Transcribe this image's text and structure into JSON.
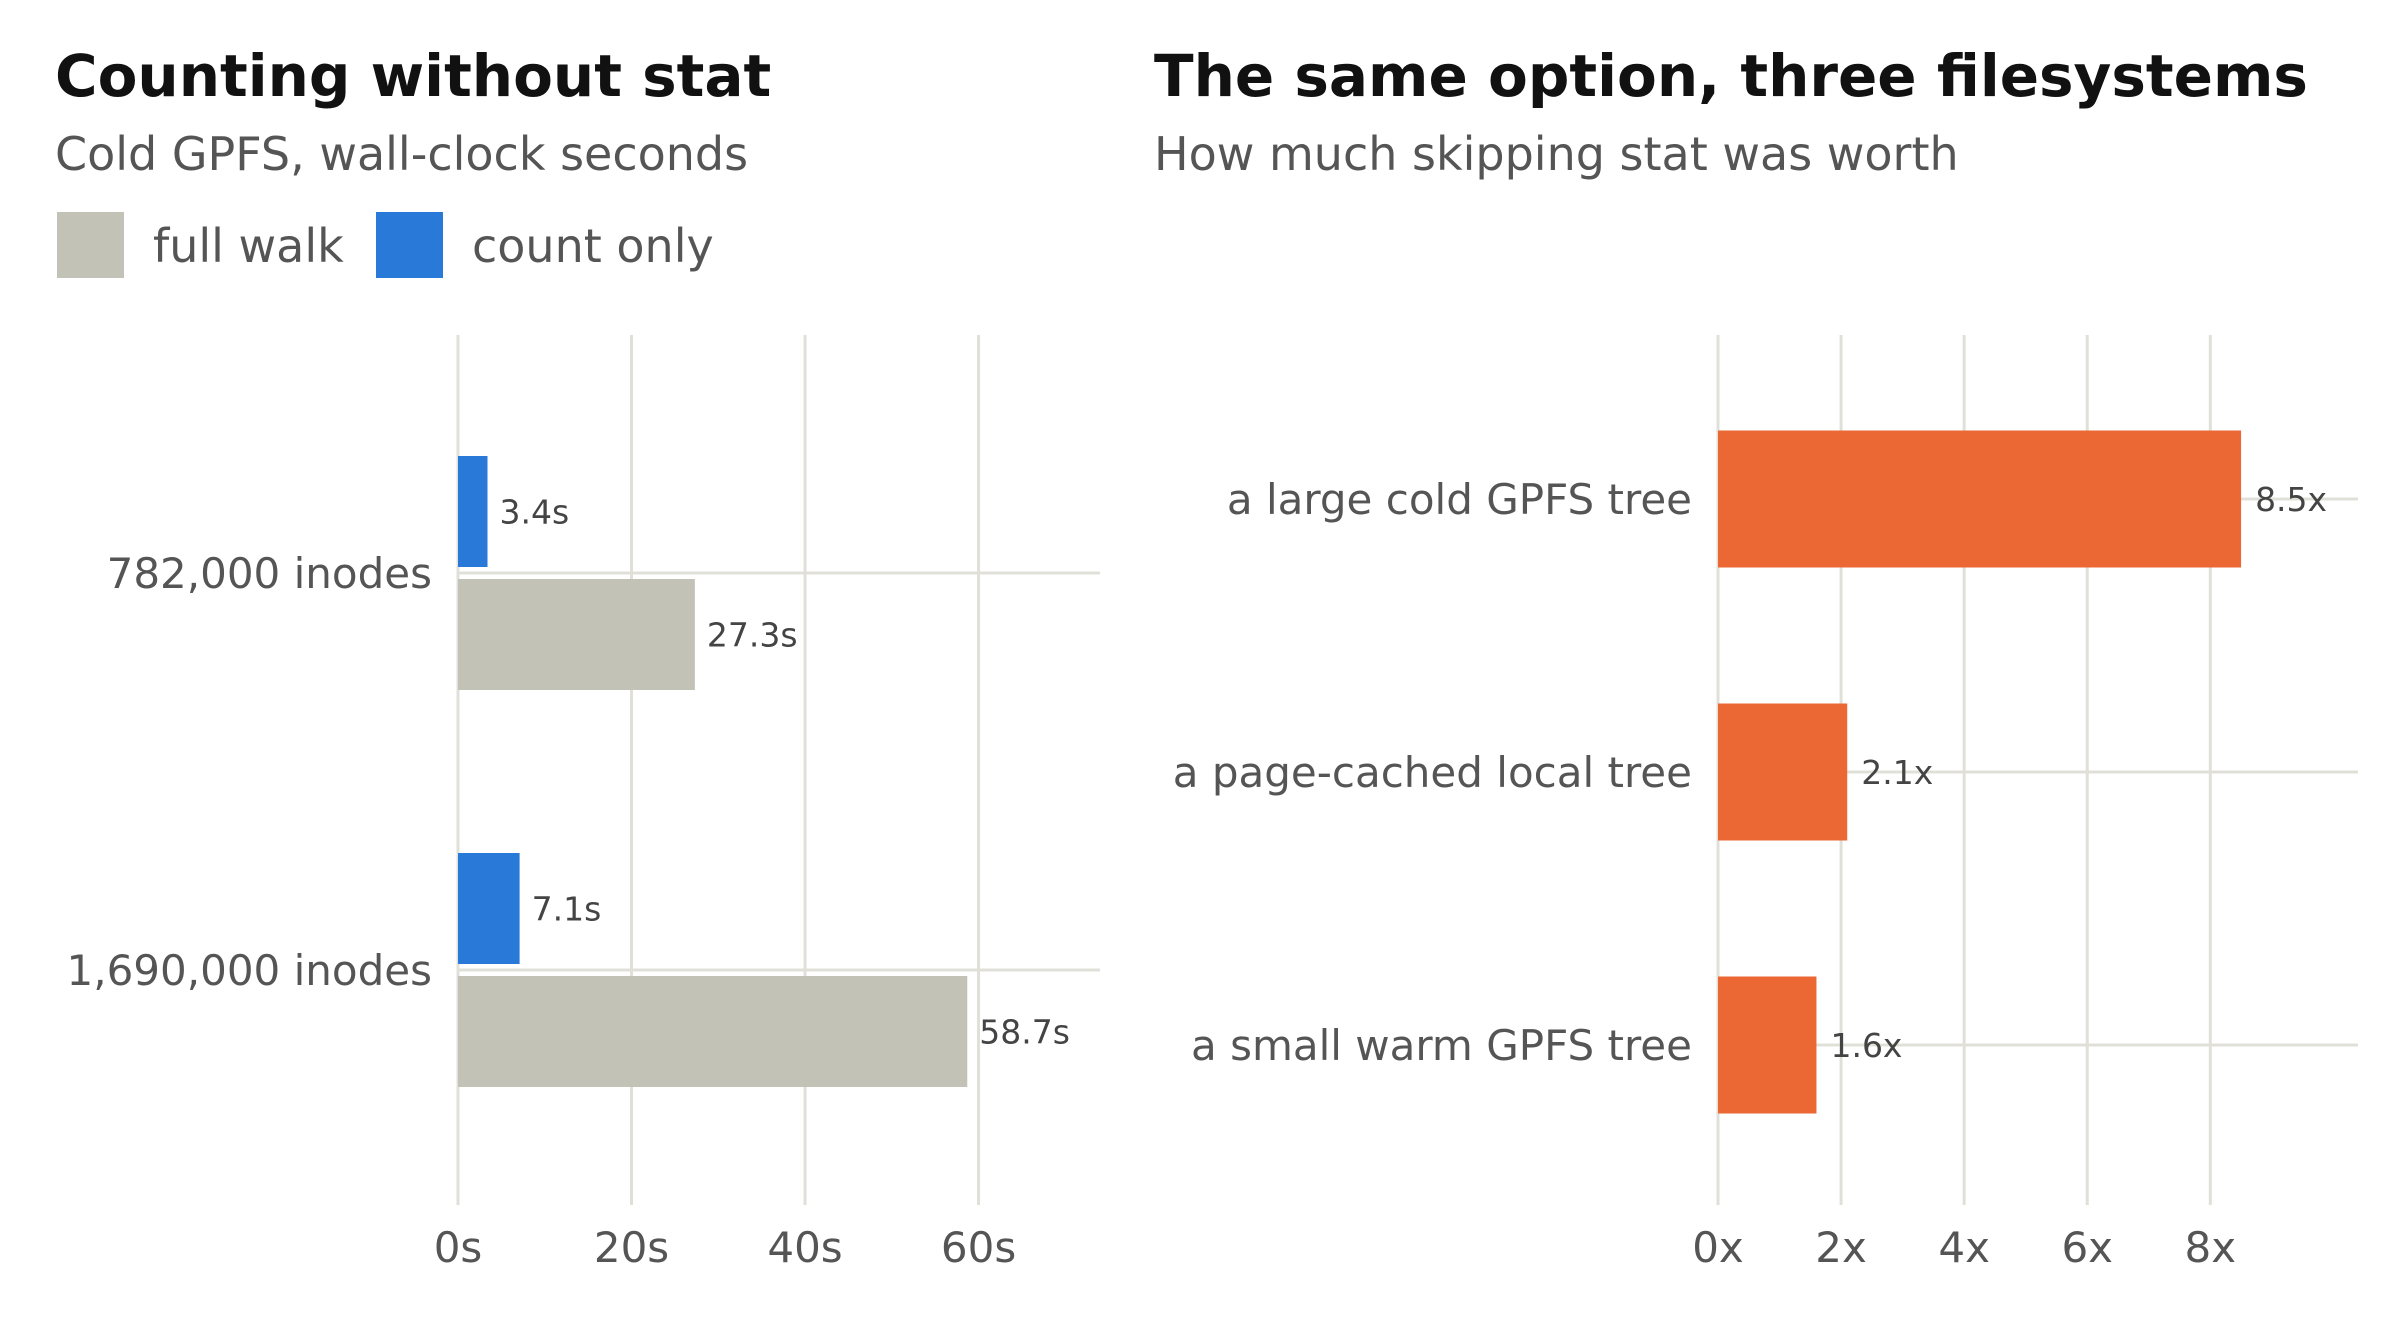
{
  "chart_data": [
    {
      "type": "bar",
      "orientation": "horizontal",
      "title": "Counting without stat",
      "subtitle": "Cold GPFS, wall-clock seconds",
      "categories": [
        "782,000 inodes",
        "1,690,000 inodes"
      ],
      "series": [
        {
          "name": "count only",
          "values": [
            3.4,
            7.1
          ],
          "labels": [
            "3.4s",
            "7.1s"
          ],
          "color": "#2979d9"
        },
        {
          "name": "full walk",
          "values": [
            27.3,
            58.7
          ],
          "labels": [
            "27.3s",
            "58.7s"
          ],
          "color": "#c2c2b6"
        }
      ],
      "legend": {
        "placement": "top-left",
        "items": [
          "full walk",
          "count only"
        ]
      },
      "xlim": [
        0,
        74
      ],
      "ticks": [
        0,
        20,
        40,
        60
      ],
      "tick_labels": [
        "0s",
        "20s",
        "40s",
        "60s"
      ],
      "grid": true
    },
    {
      "type": "bar",
      "orientation": "horizontal",
      "title": "The same option, three filesystems",
      "subtitle": "How much skipping stat was worth",
      "categories": [
        "a large cold GPFS tree",
        "a page-cached local tree",
        "a small warm GPFS tree"
      ],
      "series": [
        {
          "values": [
            8.5,
            2.1,
            1.6
          ],
          "labels": [
            "8.5x",
            "2.1x",
            "1.6x"
          ],
          "color": "#eb6834"
        }
      ],
      "xlim": [
        0,
        10.4
      ],
      "ticks": [
        0,
        2,
        4,
        6,
        8
      ],
      "tick_labels": [
        "0x",
        "2x",
        "4x",
        "6x",
        "8x"
      ],
      "grid": true
    }
  ]
}
